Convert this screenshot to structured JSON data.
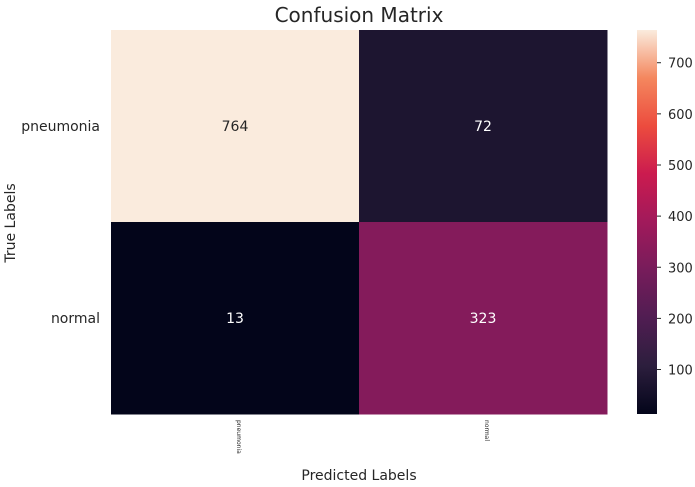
{
  "chart_data": {
    "type": "heatmap",
    "title": "Confusion Matrix",
    "xlabel": "Predicted Labels",
    "ylabel": "True Labels",
    "x_categories": [
      "pneumonia",
      "normal"
    ],
    "y_categories": [
      "pneumonia",
      "normal"
    ],
    "values": [
      [
        764,
        72
      ],
      [
        13,
        323
      ]
    ],
    "colormap": "rocket",
    "colorbar": {
      "ticks": [
        100,
        200,
        300,
        400,
        500,
        600,
        700
      ],
      "range": [
        13,
        764
      ]
    }
  }
}
